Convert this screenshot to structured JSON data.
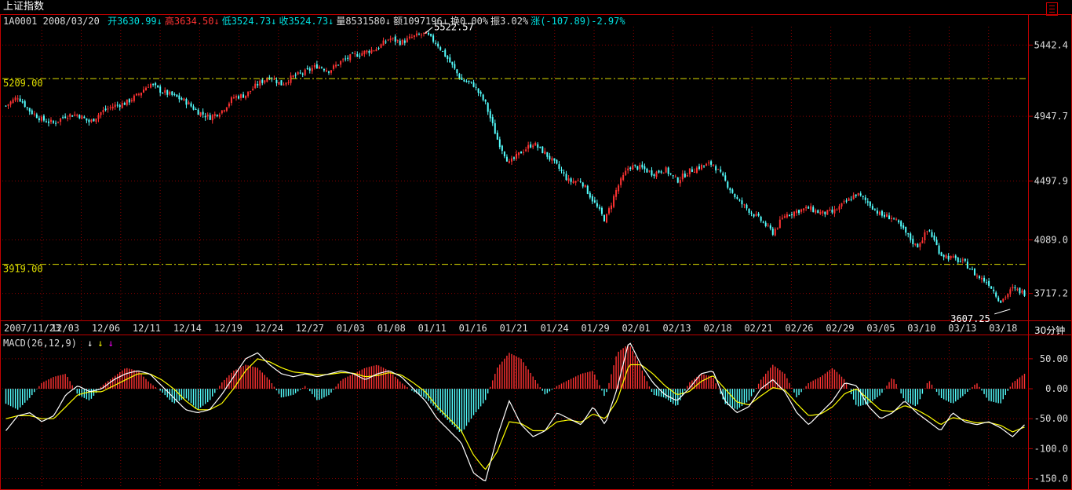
{
  "window": {
    "title": "上证指数",
    "menu_icon": "menu-icon"
  },
  "header": {
    "code": "1A0001",
    "date": "2008/03/20",
    "items": [
      {
        "label": "开",
        "value": "3630.99",
        "arrow": "↓",
        "color": "#00e0e0"
      },
      {
        "label": "高",
        "value": "3634.50",
        "arrow": "↓",
        "color": "#ff3333"
      },
      {
        "label": "低",
        "value": "3524.73",
        "arrow": "↓",
        "color": "#00e0e0"
      },
      {
        "label": "收",
        "value": "3524.73",
        "arrow": "↓",
        "color": "#00e0e0"
      },
      {
        "label": "量",
        "value": "8531580",
        "arrow": "↓",
        "color": "#dddddd"
      },
      {
        "label": "额",
        "value": "1097196",
        "arrow": "↓",
        "color": "#dddddd"
      },
      {
        "label": "换",
        "value": "0.00%",
        "arrow": "",
        "color": "#dddddd"
      },
      {
        "label": "振",
        "value": "3.02%",
        "arrow": "",
        "color": "#dddddd"
      },
      {
        "label": "涨",
        "value": "(-107.89)-2.97%",
        "arrow": "",
        "color": "#00e0e0"
      }
    ]
  },
  "macd_header": {
    "label": "MACD(26,12,9)",
    "arrows": [
      {
        "glyph": "↓",
        "color": "#ffffff"
      },
      {
        "glyph": "↓",
        "color": "#ffff00"
      },
      {
        "glyph": "↓",
        "color": "#ff00ff"
      }
    ]
  },
  "period_label": "30分钟",
  "colors": {
    "up": "#ff3232",
    "down": "#54ffff",
    "grid": "#8b0000",
    "frame": "#c00000",
    "ref_line": "#e0e000",
    "dif": "#ffffff",
    "dea": "#ffff00"
  },
  "chart_data": [
    {
      "type": "candlestick",
      "interval": "30分钟",
      "y_axis_labels": [
        5442.4,
        4947.7,
        4497.9,
        4089.0,
        3717.2
      ],
      "ylim": [
        3530,
        5570
      ],
      "x_tick_labels": [
        "2007/11/23",
        "12/03",
        "12/06",
        "12/11",
        "12/14",
        "12/19",
        "12/24",
        "12/27",
        "01/03",
        "01/08",
        "01/11",
        "01/16",
        "01/21",
        "01/24",
        "01/29",
        "02/01",
        "02/13",
        "02/18",
        "02/21",
        "02/26",
        "02/29",
        "03/05",
        "03/10",
        "03/13",
        "03/18"
      ],
      "reference_lines": [
        {
          "value": 5209.0,
          "label": "5209.00"
        },
        {
          "value": 3919.0,
          "label": "3919.00"
        }
      ],
      "annotations": [
        {
          "text": "5522.57",
          "value": 5522.57,
          "kind": "high"
        },
        {
          "text": "3607.25",
          "value": 3607.25,
          "kind": "low"
        }
      ],
      "close_path": [
        [
          0,
          5020
        ],
        [
          1,
          5085
        ],
        [
          2,
          4985
        ],
        [
          3,
          4925
        ],
        [
          4,
          4900
        ],
        [
          5,
          4955
        ],
        [
          6,
          4960
        ],
        [
          7,
          4905
        ],
        [
          8,
          4980
        ],
        [
          9,
          5020
        ],
        [
          10,
          5040
        ],
        [
          11,
          5095
        ],
        [
          12,
          5175
        ],
        [
          13,
          5120
        ],
        [
          14,
          5090
        ],
        [
          15,
          5050
        ],
        [
          16,
          4980
        ],
        [
          17,
          4940
        ],
        [
          18,
          4985
        ],
        [
          19,
          5080
        ],
        [
          20,
          5095
        ],
        [
          21,
          5170
        ],
        [
          22,
          5225
        ],
        [
          23,
          5170
        ],
        [
          24,
          5225
        ],
        [
          25,
          5255
        ],
        [
          26,
          5300
        ],
        [
          27,
          5265
        ],
        [
          28,
          5330
        ],
        [
          29,
          5370
        ],
        [
          30,
          5395
        ],
        [
          31,
          5420
        ],
        [
          32,
          5490
        ],
        [
          33,
          5460
        ],
        [
          34,
          5500
        ],
        [
          35,
          5522
        ],
        [
          36,
          5450
        ],
        [
          37,
          5330
        ],
        [
          38,
          5200
        ],
        [
          39,
          5170
        ],
        [
          40,
          5040
        ],
        [
          41,
          4790
        ],
        [
          42,
          4620
        ],
        [
          43,
          4700
        ],
        [
          44,
          4760
        ],
        [
          45,
          4690
        ],
        [
          46,
          4600
        ],
        [
          47,
          4495
        ],
        [
          48,
          4500
        ],
        [
          49,
          4360
        ],
        [
          50,
          4225
        ],
        [
          51,
          4450
        ],
        [
          52,
          4600
        ],
        [
          53,
          4590
        ],
        [
          54,
          4550
        ],
        [
          55,
          4580
        ],
        [
          56,
          4500
        ],
        [
          57,
          4565
        ],
        [
          58,
          4600
        ],
        [
          59,
          4620
        ],
        [
          60,
          4500
        ],
        [
          61,
          4370
        ],
        [
          62,
          4295
        ],
        [
          63,
          4225
        ],
        [
          64,
          4140
        ],
        [
          65,
          4260
        ],
        [
          66,
          4290
        ],
        [
          67,
          4310
        ],
        [
          68,
          4275
        ],
        [
          69,
          4280
        ],
        [
          70,
          4345
        ],
        [
          71,
          4410
        ],
        [
          72,
          4345
        ],
        [
          73,
          4260
        ],
        [
          74,
          4245
        ],
        [
          75,
          4145
        ],
        [
          76,
          4040
        ],
        [
          77,
          4165
        ],
        [
          78,
          3990
        ],
        [
          79,
          3960
        ],
        [
          80,
          3930
        ],
        [
          81,
          3840
        ],
        [
          82,
          3790
        ],
        [
          83,
          3660
        ],
        [
          84,
          3750
        ],
        [
          85,
          3720
        ]
      ]
    },
    {
      "type": "bar+line",
      "name": "MACD",
      "label": "MACD(26,12,9)",
      "y_axis_labels": [
        50.0,
        0.0,
        -50.0,
        -100.0,
        -150.0
      ],
      "ylim": [
        -165,
        80
      ],
      "histogram": [
        [
          0,
          -25
        ],
        [
          1,
          -35
        ],
        [
          2,
          -15
        ],
        [
          3,
          10
        ],
        [
          4,
          20
        ],
        [
          5,
          25
        ],
        [
          6,
          -10
        ],
        [
          7,
          -20
        ],
        [
          8,
          5
        ],
        [
          9,
          20
        ],
        [
          10,
          35
        ],
        [
          11,
          30
        ],
        [
          12,
          10
        ],
        [
          13,
          -5
        ],
        [
          14,
          -25
        ],
        [
          15,
          -15
        ],
        [
          16,
          -35
        ],
        [
          17,
          -20
        ],
        [
          18,
          10
        ],
        [
          19,
          30
        ],
        [
          20,
          40
        ],
        [
          21,
          35
        ],
        [
          22,
          15
        ],
        [
          23,
          -15
        ],
        [
          24,
          -10
        ],
        [
          25,
          5
        ],
        [
          26,
          -20
        ],
        [
          27,
          -10
        ],
        [
          28,
          15
        ],
        [
          29,
          25
        ],
        [
          30,
          35
        ],
        [
          31,
          40
        ],
        [
          32,
          30
        ],
        [
          33,
          10
        ],
        [
          34,
          -5
        ],
        [
          35,
          -15
        ],
        [
          36,
          -35
        ],
        [
          37,
          -55
        ],
        [
          38,
          -75
        ],
        [
          39,
          -45
        ],
        [
          40,
          -20
        ],
        [
          41,
          35
        ],
        [
          42,
          60
        ],
        [
          43,
          50
        ],
        [
          44,
          20
        ],
        [
          45,
          -10
        ],
        [
          46,
          5
        ],
        [
          47,
          15
        ],
        [
          48,
          25
        ],
        [
          49,
          30
        ],
        [
          50,
          -15
        ],
        [
          51,
          60
        ],
        [
          52,
          75
        ],
        [
          53,
          35
        ],
        [
          54,
          -10
        ],
        [
          55,
          -15
        ],
        [
          56,
          -30
        ],
        [
          57,
          10
        ],
        [
          58,
          25
        ],
        [
          59,
          20
        ],
        [
          60,
          -25
        ],
        [
          61,
          -35
        ],
        [
          62,
          -20
        ],
        [
          63,
          15
        ],
        [
          64,
          40
        ],
        [
          65,
          25
        ],
        [
          66,
          -15
        ],
        [
          67,
          10
        ],
        [
          68,
          20
        ],
        [
          69,
          35
        ],
        [
          70,
          15
        ],
        [
          71,
          -30
        ],
        [
          72,
          -25
        ],
        [
          73,
          -10
        ],
        [
          74,
          20
        ],
        [
          75,
          -20
        ],
        [
          76,
          -30
        ],
        [
          77,
          15
        ],
        [
          78,
          -15
        ],
        [
          79,
          -25
        ],
        [
          80,
          -10
        ],
        [
          81,
          10
        ],
        [
          82,
          -20
        ],
        [
          83,
          -25
        ],
        [
          84,
          10
        ],
        [
          85,
          25
        ]
      ],
      "dif": [
        [
          0,
          -70
        ],
        [
          1,
          -45
        ],
        [
          2,
          -40
        ],
        [
          3,
          -55
        ],
        [
          4,
          -45
        ],
        [
          5,
          -10
        ],
        [
          6,
          5
        ],
        [
          7,
          -5
        ],
        [
          8,
          0
        ],
        [
          9,
          15
        ],
        [
          10,
          25
        ],
        [
          11,
          30
        ],
        [
          12,
          25
        ],
        [
          13,
          5
        ],
        [
          14,
          -15
        ],
        [
          15,
          -35
        ],
        [
          16,
          -40
        ],
        [
          17,
          -35
        ],
        [
          18,
          -10
        ],
        [
          19,
          20
        ],
        [
          20,
          50
        ],
        [
          21,
          60
        ],
        [
          22,
          40
        ],
        [
          23,
          25
        ],
        [
          24,
          20
        ],
        [
          25,
          25
        ],
        [
          26,
          20
        ],
        [
          27,
          25
        ],
        [
          28,
          30
        ],
        [
          29,
          25
        ],
        [
          30,
          15
        ],
        [
          31,
          25
        ],
        [
          32,
          30
        ],
        [
          33,
          20
        ],
        [
          34,
          0
        ],
        [
          35,
          -20
        ],
        [
          36,
          -50
        ],
        [
          37,
          -70
        ],
        [
          38,
          -90
        ],
        [
          39,
          -140
        ],
        [
          40,
          -155
        ],
        [
          41,
          -80
        ],
        [
          42,
          -20
        ],
        [
          43,
          -60
        ],
        [
          44,
          -80
        ],
        [
          45,
          -70
        ],
        [
          46,
          -40
        ],
        [
          47,
          -50
        ],
        [
          48,
          -60
        ],
        [
          49,
          -30
        ],
        [
          50,
          -60
        ],
        [
          51,
          0
        ],
        [
          52,
          80
        ],
        [
          53,
          40
        ],
        [
          54,
          10
        ],
        [
          55,
          -10
        ],
        [
          56,
          -20
        ],
        [
          57,
          0
        ],
        [
          58,
          25
        ],
        [
          59,
          30
        ],
        [
          60,
          -20
        ],
        [
          61,
          -40
        ],
        [
          62,
          -30
        ],
        [
          63,
          0
        ],
        [
          64,
          15
        ],
        [
          65,
          -5
        ],
        [
          66,
          -40
        ],
        [
          67,
          -60
        ],
        [
          68,
          -40
        ],
        [
          69,
          -20
        ],
        [
          70,
          10
        ],
        [
          71,
          5
        ],
        [
          72,
          -30
        ],
        [
          73,
          -50
        ],
        [
          74,
          -40
        ],
        [
          75,
          -20
        ],
        [
          76,
          -40
        ],
        [
          77,
          -55
        ],
        [
          78,
          -70
        ],
        [
          79,
          -40
        ],
        [
          80,
          -55
        ],
        [
          81,
          -60
        ],
        [
          82,
          -55
        ],
        [
          83,
          -65
        ],
        [
          84,
          -80
        ],
        [
          85,
          -60
        ]
      ],
      "dea": [
        [
          0,
          -50
        ],
        [
          1,
          -45
        ],
        [
          2,
          -45
        ],
        [
          3,
          -50
        ],
        [
          4,
          -50
        ],
        [
          5,
          -30
        ],
        [
          6,
          -10
        ],
        [
          7,
          -5
        ],
        [
          8,
          -5
        ],
        [
          9,
          5
        ],
        [
          10,
          15
        ],
        [
          11,
          25
        ],
        [
          12,
          25
        ],
        [
          13,
          15
        ],
        [
          14,
          0
        ],
        [
          15,
          -20
        ],
        [
          16,
          -35
        ],
        [
          17,
          -35
        ],
        [
          18,
          -25
        ],
        [
          19,
          0
        ],
        [
          20,
          30
        ],
        [
          21,
          50
        ],
        [
          22,
          45
        ],
        [
          23,
          35
        ],
        [
          24,
          28
        ],
        [
          25,
          26
        ],
        [
          26,
          23
        ],
        [
          27,
          24
        ],
        [
          28,
          27
        ],
        [
          29,
          26
        ],
        [
          30,
          20
        ],
        [
          31,
          22
        ],
        [
          32,
          27
        ],
        [
          33,
          23
        ],
        [
          34,
          10
        ],
        [
          35,
          -5
        ],
        [
          36,
          -30
        ],
        [
          37,
          -50
        ],
        [
          38,
          -70
        ],
        [
          39,
          -110
        ],
        [
          40,
          -135
        ],
        [
          41,
          -105
        ],
        [
          42,
          -55
        ],
        [
          43,
          -58
        ],
        [
          44,
          -70
        ],
        [
          45,
          -70
        ],
        [
          46,
          -55
        ],
        [
          47,
          -52
        ],
        [
          48,
          -56
        ],
        [
          49,
          -42
        ],
        [
          50,
          -50
        ],
        [
          51,
          -20
        ],
        [
          52,
          40
        ],
        [
          53,
          40
        ],
        [
          54,
          25
        ],
        [
          55,
          5
        ],
        [
          56,
          -10
        ],
        [
          57,
          -5
        ],
        [
          58,
          12
        ],
        [
          59,
          22
        ],
        [
          60,
          0
        ],
        [
          61,
          -22
        ],
        [
          62,
          -27
        ],
        [
          63,
          -12
        ],
        [
          64,
          2
        ],
        [
          65,
          -2
        ],
        [
          66,
          -25
        ],
        [
          67,
          -45
        ],
        [
          68,
          -42
        ],
        [
          69,
          -30
        ],
        [
          70,
          -8
        ],
        [
          71,
          0
        ],
        [
          72,
          -18
        ],
        [
          73,
          -36
        ],
        [
          74,
          -38
        ],
        [
          75,
          -28
        ],
        [
          76,
          -35
        ],
        [
          77,
          -46
        ],
        [
          78,
          -60
        ],
        [
          79,
          -48
        ],
        [
          80,
          -52
        ],
        [
          81,
          -57
        ],
        [
          82,
          -56
        ],
        [
          83,
          -61
        ],
        [
          84,
          -72
        ],
        [
          85,
          -64
        ]
      ]
    }
  ]
}
